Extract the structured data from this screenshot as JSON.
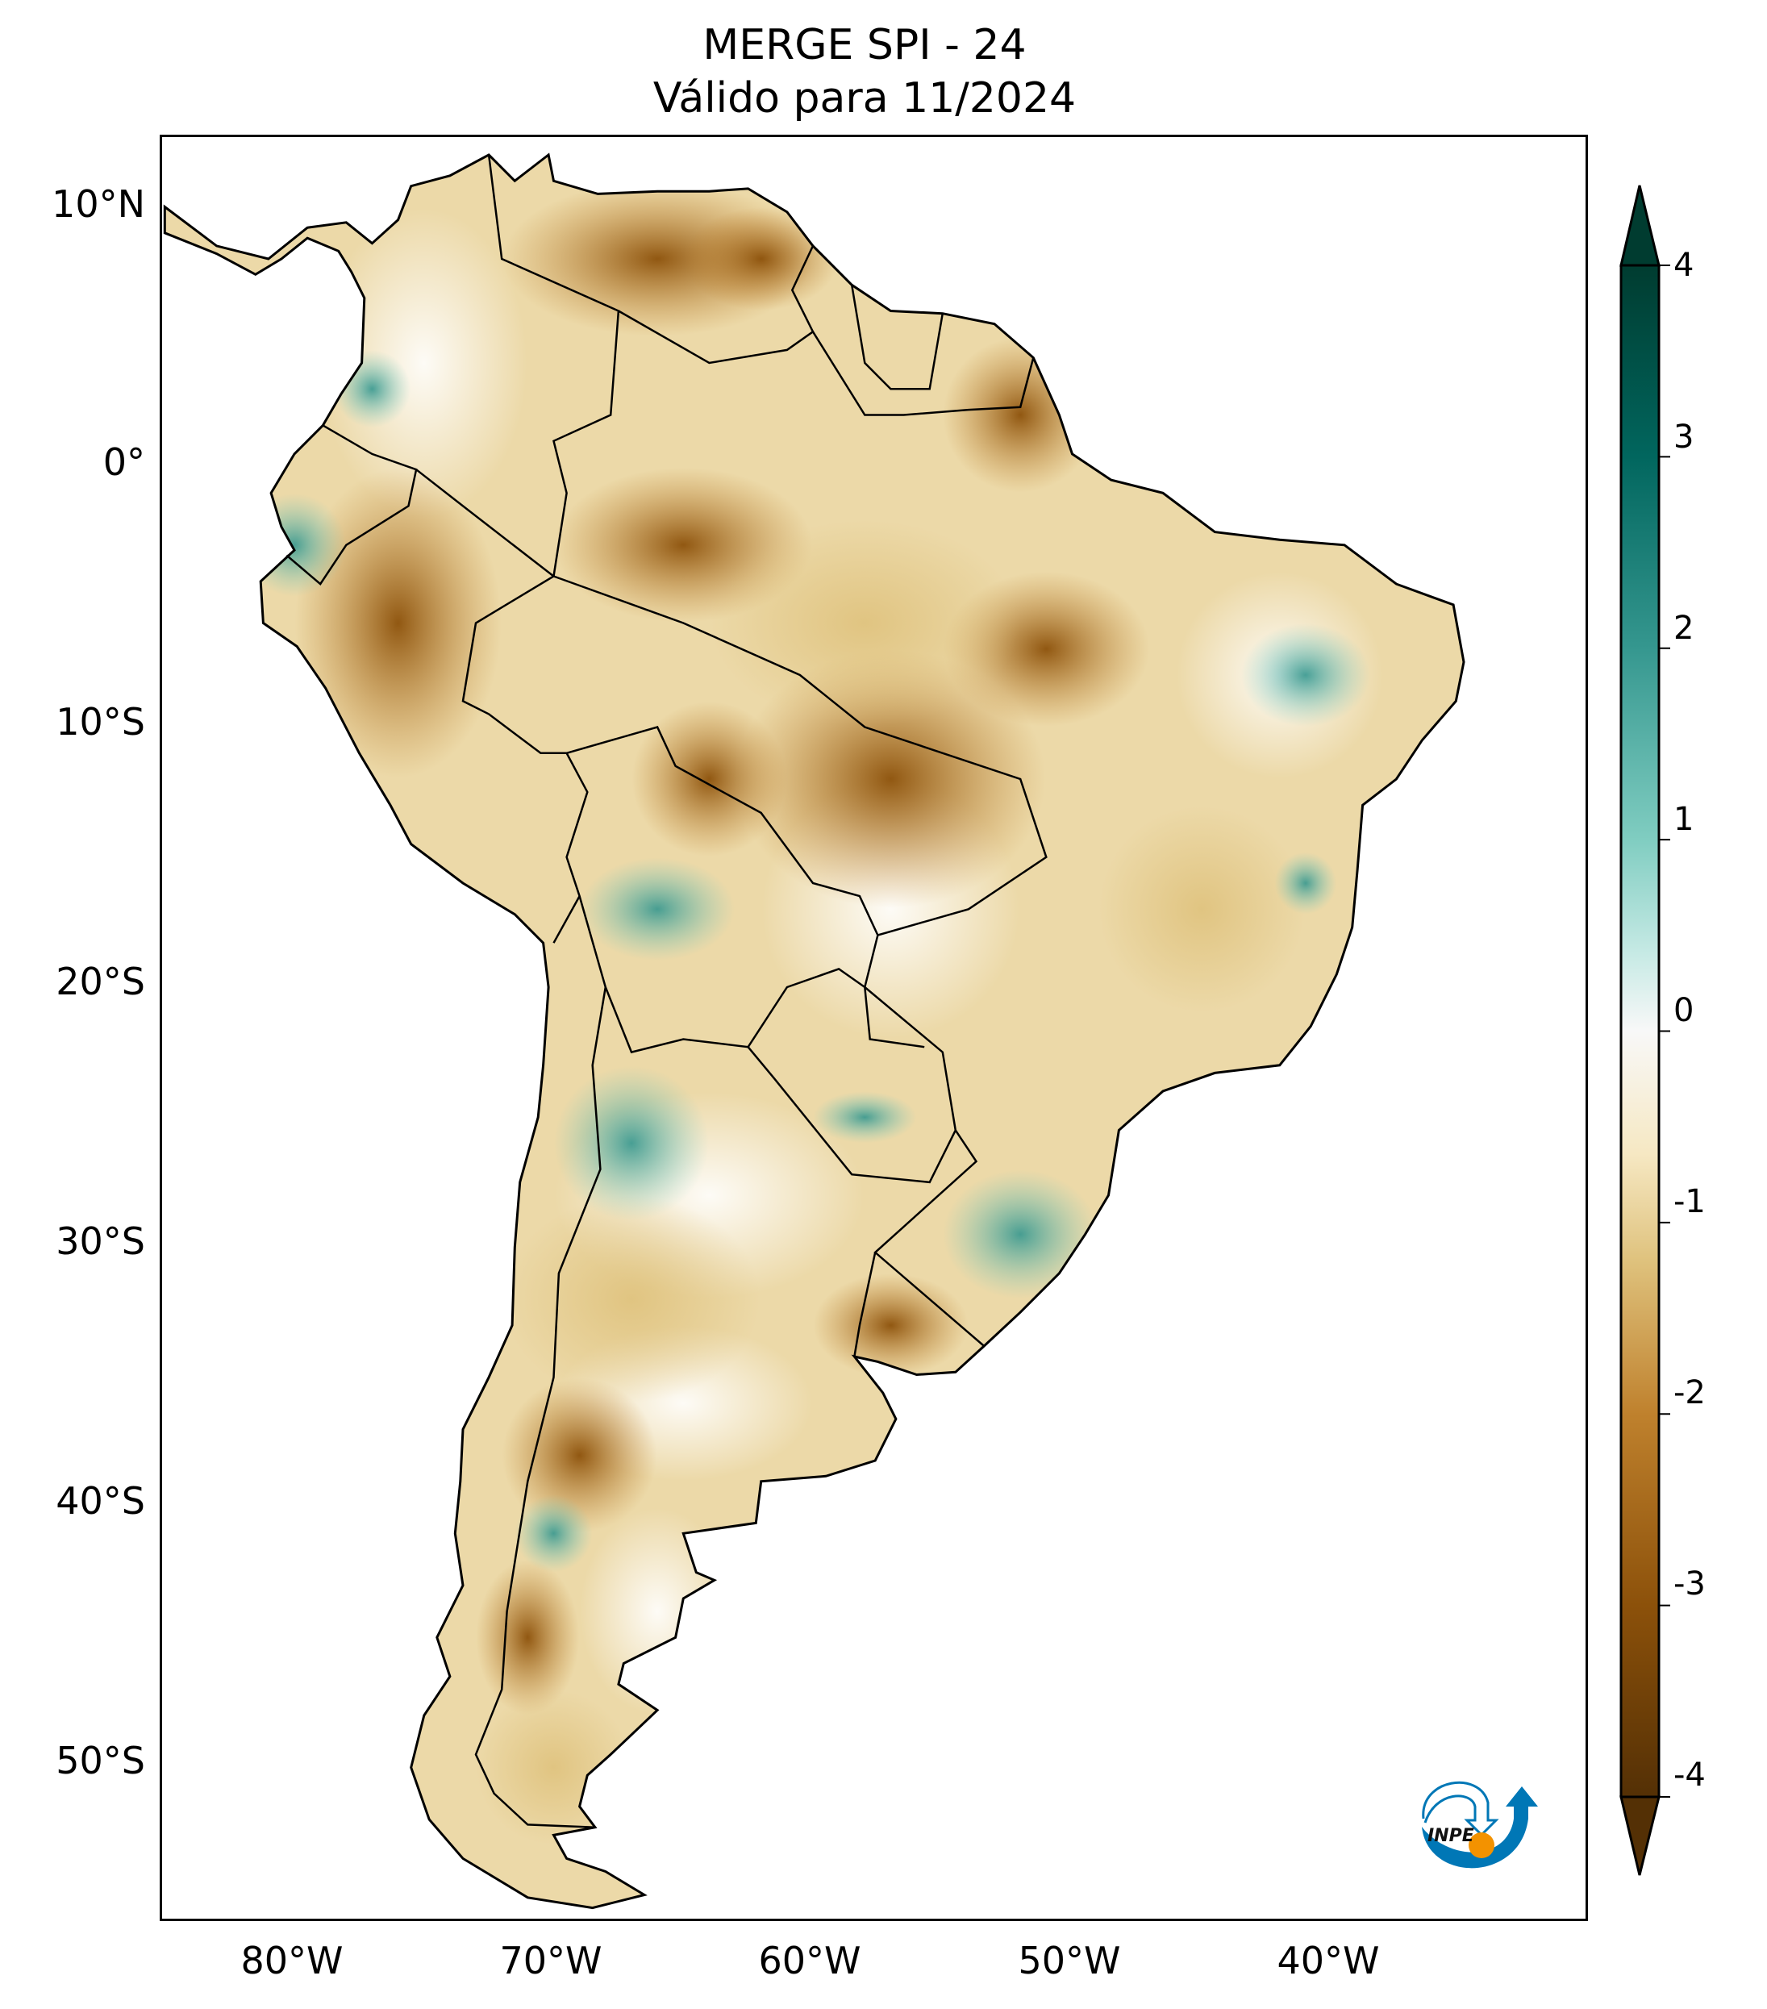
{
  "title": {
    "line1": "MERGE   SPI - 24",
    "line2": "Válido para 11/2024"
  },
  "axes": {
    "lat_labels": [
      "10°N",
      "0°",
      "10°S",
      "20°S",
      "30°S",
      "40°S",
      "50°S"
    ],
    "lon_labels": [
      "80°W",
      "70°W",
      "60°W",
      "50°W",
      "40°W"
    ]
  },
  "colorbar": {
    "ticks": [
      "4",
      "3",
      "2",
      "1",
      "0",
      "-1",
      "-2",
      "-3",
      "-4"
    ],
    "range": [
      -4,
      4
    ],
    "colors": {
      "max": "#003c30",
      "pos": "#35978f",
      "light_pos": "#c7eae5",
      "zero": "#f5f5f5",
      "light_neg": "#f6e8c3",
      "neg": "#bf812d",
      "min": "#543005"
    }
  },
  "logo": {
    "text": "INPE"
  },
  "colors": {
    "blue": "#0077b6",
    "orange": "#f39200"
  }
}
